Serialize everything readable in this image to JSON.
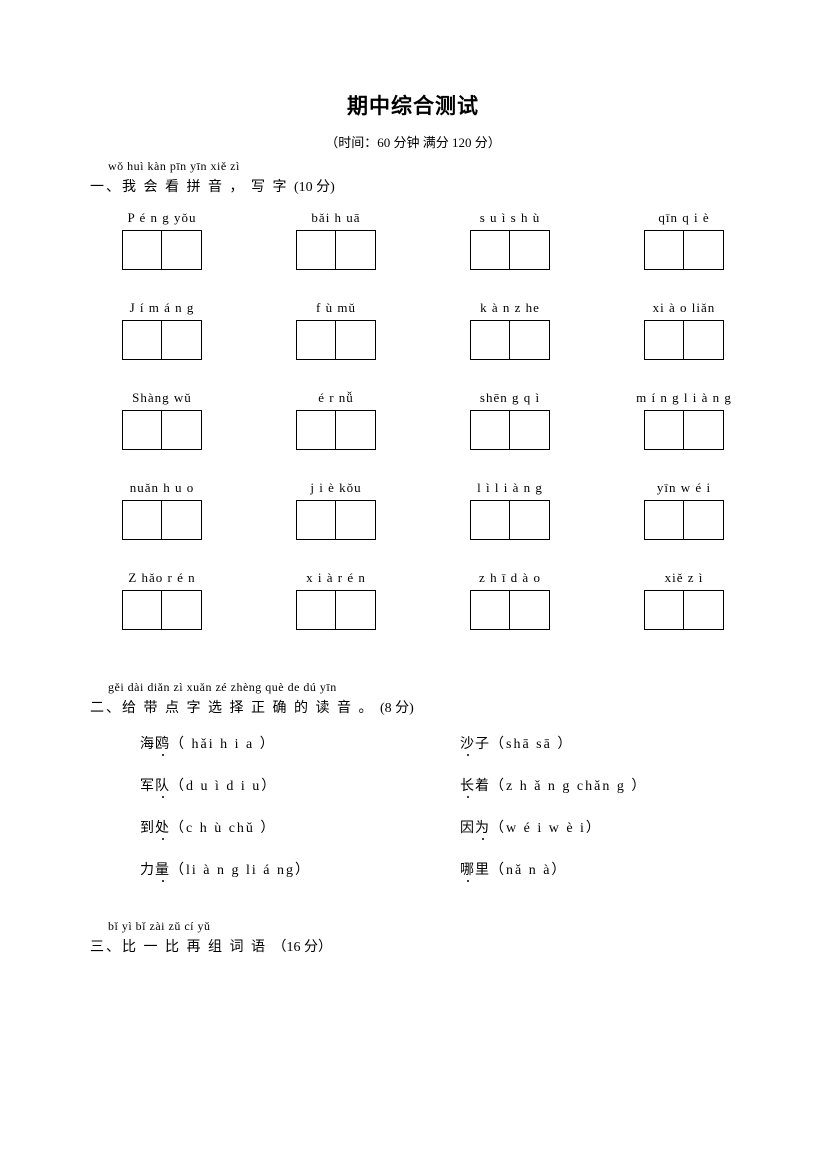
{
  "title": "期中综合测试",
  "subtitle": "（时间：60 分钟   满分 120 分）",
  "q1": {
    "pinyin": "wǒ huì kàn pīn yīn   xiě zì",
    "head": "一、我  会  看  拼  音 ， 写  字",
    "points": "(10 分)",
    "rows": [
      [
        {
          "py": "P é n g    yǒu"
        },
        {
          "py": "bǎi    h uā"
        },
        {
          "py": "s u ì   s h ù"
        },
        {
          "py": "qīn   q i è"
        }
      ],
      [
        {
          "py": "J í    m á n g"
        },
        {
          "py": "f ù    mǔ"
        },
        {
          "py": "k à n   z he"
        },
        {
          "py": "xi à o   liǎn"
        }
      ],
      [
        {
          "py": "Shàng   wǔ"
        },
        {
          "py": "é r    nǚ"
        },
        {
          "py": "shēn g   q ì"
        },
        {
          "py": "m í n g   l i à n g"
        }
      ],
      [
        {
          "py": "nuǎn   h u o"
        },
        {
          "py": "j i è    kǒu"
        },
        {
          "py": "l ì   l i à n g"
        },
        {
          "py": "yīn   w é i"
        }
      ],
      [
        {
          "py": "Z hǎo    r é n"
        },
        {
          "py": "x i à   r é n"
        },
        {
          "py": "z h ī    d à o"
        },
        {
          "py": "xiě     z ì"
        }
      ]
    ]
  },
  "q2": {
    "pinyin": "gěi dài diǎn zì xuǎn zé zhèng què de dú yīn",
    "head": "二、给  带   点  字  选  择   正    确 的 读 音 。",
    "points": "(8 分)",
    "items": [
      {
        "l_word": "海",
        "l_dot": "鸥",
        "l_opts": "（ hǎi    h i a  ）",
        "r_word": "",
        "r_dot": "沙",
        "r_post": "子",
        "r_opts": "（shā     sā  ）"
      },
      {
        "l_word": "军",
        "l_dot": "队",
        "l_opts": "（d u ì    d i u）",
        "r_word": "",
        "r_dot": "长",
        "r_post": "着",
        "r_opts": "（z h ǎ n g     chǎn g ）"
      },
      {
        "l_word": "到",
        "l_dot": "处",
        "l_opts": "（c h ù     chǔ   ）",
        "r_word": "因",
        "r_dot": "为",
        "r_post": "",
        "r_opts": "（w é i     w è i）"
      },
      {
        "l_word": "力",
        "l_dot": "量",
        "l_opts": "（li à n g    li á ng）",
        "r_word": "",
        "r_dot": "哪",
        "r_post": "里",
        "r_opts": "（nǎ     n à）"
      }
    ]
  },
  "q3": {
    "pinyin": "bǐ yì bǐ zài zǔ cí yǔ",
    "head": "三、比   一  比   再  组  词 语",
    "points": "（16 分）"
  }
}
